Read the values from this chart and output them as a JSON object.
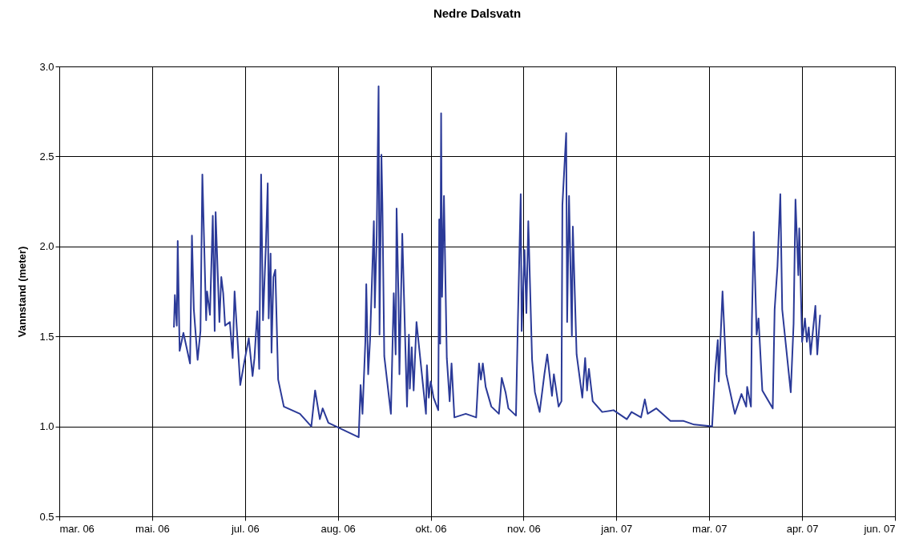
{
  "chart_data": {
    "type": "line",
    "title": "Nedre Dalsvatn",
    "ylabel": "Vannstand (meter)",
    "x": [
      "2006-05-26T12:00",
      "2006-05-27",
      "2006-05-28",
      "2006-05-28T12:00",
      "2006-05-29T12:00",
      "2006-05-31T12:00",
      "2006-06-04",
      "2006-06-05",
      "2006-06-06",
      "2006-06-08",
      "2006-06-09T12:00",
      "2006-06-10T12:00",
      "2006-06-12T12:00",
      "2006-06-13",
      "2006-06-14T12:00",
      "2006-06-16",
      "2006-06-17",
      "2006-06-17T12:00",
      "2006-06-19T12:00",
      "2006-06-20T12:00",
      "2006-06-21T12:00",
      "2006-06-22T12:00",
      "2006-06-25",
      "2006-06-26T12:00",
      "2006-06-27T12:00",
      "2006-06-30T12:00",
      "2006-07-02T12:00",
      "2006-07-05",
      "2006-07-07",
      "2006-07-08",
      "2006-07-09T12:00",
      "2006-07-10T12:00",
      "2006-07-11T12:00",
      "2006-07-12T12:00",
      "2006-07-14",
      "2006-07-15",
      "2006-07-15T12:00",
      "2006-07-16T12:00",
      "2006-07-17",
      "2006-07-18",
      "2006-07-19",
      "2006-07-20T12:00",
      "2006-07-23T12:00",
      "2006-08-01",
      "2006-08-07",
      "2006-08-09",
      "2006-08-11T12:00",
      "2006-08-13",
      "2006-08-16",
      "2006-08-20",
      "2006-09-01",
      "2006-09-02",
      "2006-09-03",
      "2006-09-04T12:00",
      "2006-09-05",
      "2006-09-06",
      "2006-09-07",
      "2006-09-09",
      "2006-09-09T12:00",
      "2006-09-10T12:00",
      "2006-09-11T12:00",
      "2006-09-12",
      "2006-09-13",
      "2006-09-13T12:00",
      "2006-09-14T12:00",
      "2006-09-18",
      "2006-09-19T12:00",
      "2006-09-20T12:00",
      "2006-09-21",
      "2006-09-22",
      "2006-09-22T12:00",
      "2006-09-24",
      "2006-09-26T12:00",
      "2006-09-27T12:00",
      "2006-09-28",
      "2006-09-29",
      "2006-09-30",
      "2006-10-01T12:00",
      "2006-10-06T12:00",
      "2006-10-07",
      "2006-10-08",
      "2006-10-09",
      "2006-10-10T12:00",
      "2006-10-13",
      "2006-10-13T12:00",
      "2006-10-14",
      "2006-10-14T12:00",
      "2006-10-15",
      "2006-10-16",
      "2006-10-17T12:00",
      "2006-10-19",
      "2006-10-20",
      "2006-10-21T12:00",
      "2006-10-27T12:00",
      "2006-11-02",
      "2006-11-03T12:00",
      "2006-11-04T12:00",
      "2006-11-05T12:00",
      "2006-11-07",
      "2006-11-10",
      "2006-11-14",
      "2006-11-15T12:00",
      "2006-11-17T12:00",
      "2006-11-19",
      "2006-11-23",
      "2006-11-24",
      "2006-11-25T12:00",
      "2006-11-26",
      "2006-11-27T12:00",
      "2006-11-28T12:00",
      "2006-11-29T12:00",
      "2006-12-01T12:00",
      "2006-12-03",
      "2006-12-05T12:00",
      "2006-12-08",
      "2006-12-09T12:00",
      "2006-12-12",
      "2006-12-13",
      "2006-12-15T12:00",
      "2006-12-17",
      "2006-12-17T12:00",
      "2006-12-18T12:00",
      "2006-12-19T12:00",
      "2006-12-20",
      "2006-12-21",
      "2006-12-22T12:00",
      "2006-12-23",
      "2006-12-25",
      "2006-12-28",
      "2006-12-29T12:00",
      "2006-12-30T12:00",
      "2006-12-31T12:00",
      "2007-01-02T12:00",
      "2007-01-07T12:00",
      "2007-01-13T12:00",
      "2007-01-20T12:00",
      "2007-01-23",
      "2007-01-28",
      "2007-01-30",
      "2007-01-31T12:00",
      "2007-02-05",
      "2007-02-12T12:00",
      "2007-02-19T12:00",
      "2007-02-25",
      "2007-03-06T12:00",
      "2007-03-08",
      "2007-03-09T12:00",
      "2007-03-10",
      "2007-03-12",
      "2007-03-14",
      "2007-03-18T12:00",
      "2007-03-22",
      "2007-03-24T12:00",
      "2007-03-25",
      "2007-03-27",
      "2007-03-27T12:00",
      "2007-03-28T12:00",
      "2007-03-30",
      "2007-03-31",
      "2007-04-02",
      "2007-04-07T12:00",
      "2007-04-08T12:00",
      "2007-04-10",
      "2007-04-11T12:00",
      "2007-04-12T12:00",
      "2007-04-17",
      "2007-04-18T12:00",
      "2007-04-19T12:00",
      "2007-04-21",
      "2007-04-21T12:00",
      "2007-04-23",
      "2007-04-24T12:00",
      "2007-04-25T12:00",
      "2007-04-26T12:00",
      "2007-04-27T12:00",
      "2007-04-30",
      "2007-05-01",
      "2007-05-02T12:00"
    ],
    "series": [
      {
        "color": "#2b3a98",
        "values": [
          1.55,
          1.73,
          1.56,
          2.03,
          1.42,
          1.52,
          1.35,
          2.06,
          1.65,
          1.37,
          1.53,
          2.4,
          1.59,
          1.75,
          1.62,
          2.17,
          1.53,
          2.19,
          1.58,
          1.83,
          1.74,
          1.56,
          1.58,
          1.38,
          1.75,
          1.23,
          1.35,
          1.49,
          1.28,
          1.38,
          1.64,
          1.32,
          2.4,
          1.59,
          2.0,
          2.35,
          1.6,
          1.96,
          1.41,
          1.83,
          1.87,
          1.26,
          1.11,
          1.07,
          1.0,
          1.2,
          1.04,
          1.1,
          1.02,
          1.0,
          0.94,
          1.23,
          1.07,
          1.47,
          1.79,
          1.29,
          1.48,
          2.14,
          1.66,
          2.06,
          2.89,
          1.51,
          2.51,
          2.24,
          1.39,
          1.07,
          1.74,
          1.4,
          2.21,
          1.72,
          1.29,
          2.07,
          1.11,
          1.51,
          1.21,
          1.44,
          1.2,
          1.58,
          1.07,
          1.34,
          1.16,
          1.25,
          1.16,
          1.09,
          2.15,
          1.46,
          2.74,
          1.72,
          2.28,
          1.38,
          1.14,
          1.35,
          1.05,
          1.07,
          1.05,
          1.35,
          1.26,
          1.35,
          1.22,
          1.11,
          1.07,
          1.27,
          1.19,
          1.1,
          1.06,
          1.58,
          2.29,
          1.53,
          1.98,
          1.63,
          2.14,
          1.37,
          1.19,
          1.08,
          1.29,
          1.4,
          1.17,
          1.29,
          1.11,
          1.14,
          2.23,
          2.43,
          2.63,
          1.58,
          2.28,
          1.5,
          2.11,
          1.4,
          1.16,
          1.38,
          1.2,
          1.32,
          1.14,
          1.08,
          1.09,
          1.04,
          1.08,
          1.05,
          1.15,
          1.07,
          1.1,
          1.03,
          1.03,
          1.01,
          1.0,
          1.29,
          1.48,
          1.25,
          1.75,
          1.29,
          1.07,
          1.18,
          1.11,
          1.22,
          1.11,
          1.59,
          2.08,
          1.51,
          1.6,
          1.2,
          1.1,
          1.65,
          1.89,
          2.29,
          1.65,
          1.19,
          1.57,
          2.26,
          1.84,
          2.1,
          1.47,
          1.6,
          1.47,
          1.55,
          1.4,
          1.67,
          1.4,
          1.62
        ]
      }
    ],
    "xlim": [
      "2006-03-27",
      "2007-06-11"
    ],
    "xticks": [
      {
        "value": "2006-03-27",
        "label": "mar. 06"
      },
      {
        "value": "2006-05-15",
        "label": "mai. 06"
      },
      {
        "value": "2006-07-03",
        "label": "jul. 06"
      },
      {
        "value": "2006-08-21",
        "label": "aug. 06"
      },
      {
        "value": "2006-10-09",
        "label": "okt. 06"
      },
      {
        "value": "2006-11-27",
        "label": "nov. 06"
      },
      {
        "value": "2007-01-15",
        "label": "jan. 07"
      },
      {
        "value": "2007-03-05",
        "label": "mar. 07"
      },
      {
        "value": "2007-04-23",
        "label": "apr. 07"
      },
      {
        "value": "2007-06-11",
        "label": "jun. 07"
      }
    ],
    "ylim": [
      0.5,
      3.0
    ],
    "yticks": [
      0.5,
      {
        "value": 1,
        "label": "1.0"
      },
      1.5,
      {
        "value": 2,
        "label": "2.0"
      },
      2.5,
      {
        "value": 3,
        "label": "3.0"
      }
    ],
    "grid": true,
    "line_style": "solid",
    "marker": "none"
  }
}
